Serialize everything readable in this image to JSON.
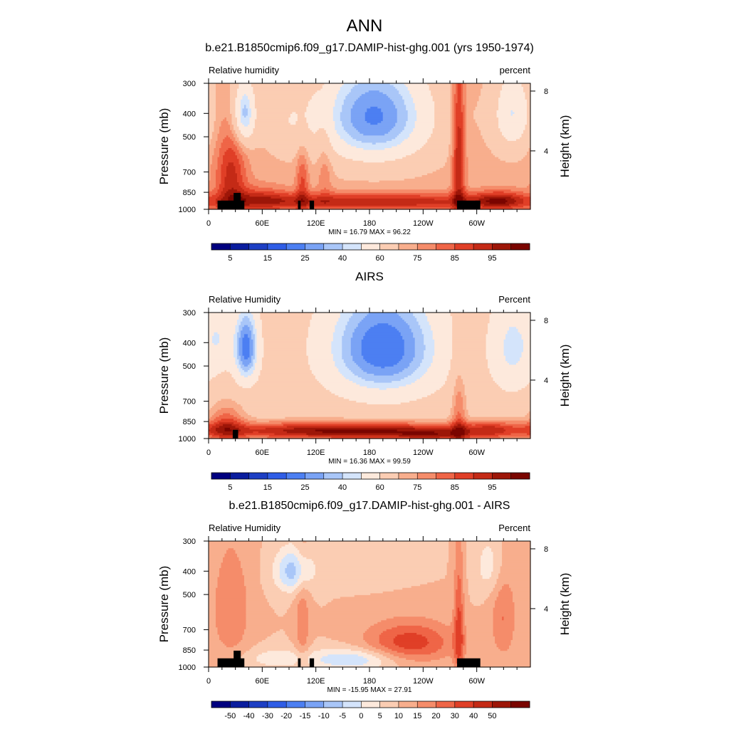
{
  "figure": {
    "title": "ANN",
    "colors": {
      "abs_palette": [
        "#00007f",
        "#0a1d9e",
        "#1d3fc4",
        "#2f5de6",
        "#4c7ff2",
        "#7aa3f5",
        "#a9c6f8",
        "#d4e4fb",
        "#fde9dc",
        "#fbcdb3",
        "#f8ae8d",
        "#f58c6a",
        "#ef6547",
        "#e03f27",
        "#c42a16",
        "#9d1608",
        "#7a0500"
      ],
      "diff_palette": [
        "#00007f",
        "#0a1d9e",
        "#1d3fc4",
        "#2f5de6",
        "#4c7ff2",
        "#7aa3f5",
        "#a9c6f8",
        "#d4e4fb",
        "#fde9dc",
        "#fbcdb3",
        "#f8ae8d",
        "#f58c6a",
        "#ef6547",
        "#e03f27",
        "#c42a16",
        "#9d1608",
        "#7a0500"
      ],
      "topography": "#000000"
    }
  },
  "chart_data": [
    {
      "type": "heatmap",
      "title": "b.e21.B1850cmip6.f09_g17.DAMIP-hist-ghg.001 (yrs 1950-1974)",
      "left_label": "Relative humidity",
      "right_label": "percent",
      "ylabel": "Pressure (mb)",
      "y2label": "Height (km)",
      "x_ticks": [
        "0",
        "60E",
        "120E",
        "180",
        "120W",
        "60W"
      ],
      "y_ticks": [
        "300",
        "400",
        "500",
        "700",
        "850",
        "1000"
      ],
      "y2_ticks": [
        "8",
        "4"
      ],
      "stats": "MIN =  16.79  MAX =  96.22",
      "colorbar_labels": [
        "5",
        "15",
        "25",
        "40",
        "60",
        "75",
        "85",
        "95"
      ],
      "palette": "abs_palette",
      "levels": [
        5,
        10,
        15,
        20,
        25,
        30,
        35,
        40,
        50,
        60,
        65,
        70,
        75,
        80,
        85,
        90,
        95
      ],
      "base": 62,
      "blobs": [
        {
          "lon": 185,
          "p": 410,
          "lon_w": 45,
          "p_w": 150,
          "amp": -38
        },
        {
          "lon": 40,
          "p": 400,
          "lon_w": 9,
          "p_w": 90,
          "amp": -30
        },
        {
          "lon": 340,
          "p": 400,
          "lon_w": 15,
          "p_w": 110,
          "amp": -22
        },
        {
          "lon": 88,
          "p": 430,
          "lon_w": 18,
          "p_w": 100,
          "amp": -8
        },
        {
          "lon": 180,
          "p": 930,
          "lon_w": 140,
          "p_w": 55,
          "amp": 22
        },
        {
          "lon": 280,
          "p": 600,
          "lon_w": 5,
          "p_w": 380,
          "amp": 24
        },
        {
          "lon": 25,
          "p": 720,
          "lon_w": 12,
          "p_w": 200,
          "amp": 20
        },
        {
          "lon": 105,
          "p": 760,
          "lon_w": 5,
          "p_w": 160,
          "amp": 14
        },
        {
          "lon": 130,
          "p": 650,
          "lon_w": 6,
          "p_w": 200,
          "amp": 8
        },
        {
          "lon": 325,
          "p": 920,
          "lon_w": 20,
          "p_w": 60,
          "amp": 18
        },
        {
          "lon": 55,
          "p": 900,
          "lon_w": 25,
          "p_w": 80,
          "amp": 12
        }
      ],
      "topography": [
        [
          10,
          40,
          920
        ],
        [
          28,
          36,
          855
        ],
        [
          100,
          103,
          920
        ],
        [
          113,
          118,
          920
        ],
        [
          278,
          304,
          920
        ]
      ]
    },
    {
      "type": "heatmap",
      "title": "AIRS",
      "left_label": "Relative Humidity",
      "right_label": "Percent",
      "ylabel": "Pressure (mb)",
      "y2label": "Height (km)",
      "x_ticks": [
        "0",
        "60E",
        "120E",
        "180",
        "120W",
        "60W"
      ],
      "y_ticks": [
        "300",
        "400",
        "500",
        "700",
        "850",
        "1000"
      ],
      "y2_ticks": [
        "8",
        "4"
      ],
      "stats": "MIN =  16.36  MAX =  99.59",
      "colorbar_labels": [
        "5",
        "15",
        "25",
        "40",
        "60",
        "75",
        "85",
        "95"
      ],
      "palette": "abs_palette",
      "levels": [
        5,
        10,
        15,
        20,
        25,
        30,
        35,
        40,
        50,
        60,
        65,
        70,
        75,
        80,
        85,
        90,
        95
      ],
      "base": 56,
      "blobs": [
        {
          "lon": 195,
          "p": 420,
          "lon_w": 45,
          "p_w": 160,
          "amp": -36
        },
        {
          "lon": 42,
          "p": 420,
          "lon_w": 10,
          "p_w": 110,
          "amp": -34
        },
        {
          "lon": 340,
          "p": 420,
          "lon_w": 18,
          "p_w": 150,
          "amp": -18
        },
        {
          "lon": 12,
          "p": 380,
          "lon_w": 10,
          "p_w": 100,
          "amp": -12
        },
        {
          "lon": 155,
          "p": 930,
          "lon_w": 110,
          "p_w": 55,
          "amp": 36
        },
        {
          "lon": 250,
          "p": 970,
          "lon_w": 30,
          "p_w": 35,
          "amp": 14
        },
        {
          "lon": 280,
          "p": 800,
          "lon_w": 6,
          "p_w": 250,
          "amp": 14
        },
        {
          "lon": 20,
          "p": 880,
          "lon_w": 14,
          "p_w": 120,
          "amp": 18
        },
        {
          "lon": 320,
          "p": 920,
          "lon_w": 25,
          "p_w": 60,
          "amp": 16
        }
      ],
      "topography": [
        [
          27,
          33,
          920
        ]
      ]
    },
    {
      "type": "heatmap",
      "title": "b.e21.B1850cmip6.f09_g17.DAMIP-hist-ghg.001 - AIRS",
      "left_label": "Relative Humidity",
      "right_label": "Percent",
      "ylabel": "Pressure (mb)",
      "y2label": "Height (km)",
      "x_ticks": [
        "0",
        "60E",
        "120E",
        "180",
        "120W",
        "60W"
      ],
      "y_ticks": [
        "300",
        "400",
        "500",
        "700",
        "850",
        "1000"
      ],
      "y2_ticks": [
        "8",
        "4"
      ],
      "stats": "MIN = -15.95  MAX =  27.91",
      "colorbar_labels": [
        "-50",
        "-40",
        "-30",
        "-20",
        "-15",
        "-10",
        "-5",
        "0",
        "5",
        "10",
        "15",
        "20",
        "30",
        "40",
        "50"
      ],
      "palette": "diff_palette",
      "levels": [
        -60,
        -50,
        -40,
        -30,
        -20,
        -15,
        -10,
        -5,
        0,
        5,
        10,
        15,
        20,
        30,
        40,
        50,
        60
      ],
      "base": 5,
      "blobs": [
        {
          "lon": 225,
          "p": 790,
          "lon_w": 35,
          "p_w": 110,
          "amp": 18
        },
        {
          "lon": 95,
          "p": 400,
          "lon_w": 15,
          "p_w": 60,
          "amp": -18
        },
        {
          "lon": 25,
          "p": 580,
          "lon_w": 15,
          "p_w": 220,
          "amp": 10
        },
        {
          "lon": 330,
          "p": 620,
          "lon_w": 10,
          "p_w": 200,
          "amp": 10
        },
        {
          "lon": 105,
          "p": 650,
          "lon_w": 6,
          "p_w": 300,
          "amp": 8
        },
        {
          "lon": 280,
          "p": 700,
          "lon_w": 4,
          "p_w": 300,
          "amp": 16
        },
        {
          "lon": 160,
          "p": 930,
          "lon_w": 35,
          "p_w": 70,
          "amp": -15
        },
        {
          "lon": 75,
          "p": 920,
          "lon_w": 25,
          "p_w": 60,
          "amp": -8
        },
        {
          "lon": 180,
          "p": 350,
          "lon_w": 30,
          "p_w": 60,
          "amp": -5
        },
        {
          "lon": 315,
          "p": 380,
          "lon_w": 12,
          "p_w": 80,
          "amp": -8
        }
      ],
      "topography": [
        [
          10,
          40,
          920
        ],
        [
          28,
          36,
          855
        ],
        [
          100,
          103,
          920
        ],
        [
          113,
          118,
          920
        ],
        [
          278,
          304,
          920
        ]
      ]
    }
  ]
}
